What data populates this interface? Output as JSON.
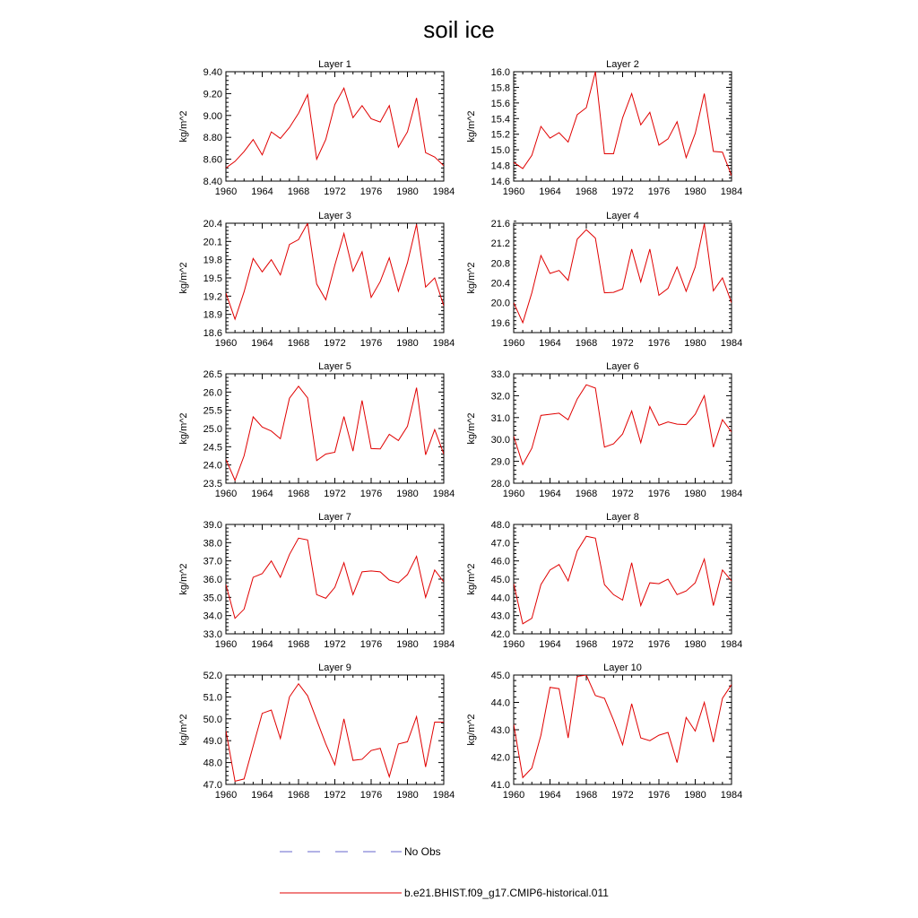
{
  "figure_title": "soil ice",
  "legend": {
    "entries": [
      {
        "label": "No Obs",
        "color": "#6666cc",
        "dash": "dashed"
      },
      {
        "label": "b.e21.BHIST.f09_g17.CMIP6-historical.011",
        "color": "#e00000",
        "dash": "solid"
      }
    ]
  },
  "chart_data": [
    {
      "type": "line",
      "title": "Layer 1",
      "ylabel": "kg/m^2",
      "xlim": [
        1960,
        1984
      ],
      "ylim": [
        8.4,
        9.4
      ],
      "xticks": [
        "1960",
        "1964",
        "1968",
        "1972",
        "1976",
        "1980",
        "1984"
      ],
      "yticks": [
        "8.40",
        "8.60",
        "8.80",
        "9.00",
        "9.20",
        "9.40"
      ],
      "x": [
        1960,
        1961,
        1962,
        1963,
        1964,
        1965,
        1966,
        1967,
        1968,
        1969,
        1970,
        1971,
        1972,
        1973,
        1974,
        1975,
        1976,
        1977,
        1978,
        1979,
        1980,
        1981,
        1982,
        1983,
        1984
      ],
      "series": [
        {
          "name": "b.e21.BHIST.f09_g17.CMIP6-historical.011",
          "color": "#e00000",
          "values": [
            8.52,
            8.58,
            8.67,
            8.78,
            8.64,
            8.85,
            8.79,
            8.89,
            9.02,
            9.19,
            8.6,
            8.78,
            9.1,
            9.25,
            8.98,
            9.09,
            8.97,
            8.94,
            9.09,
            8.71,
            8.85,
            9.16,
            8.66,
            8.62,
            8.54
          ]
        }
      ]
    },
    {
      "type": "line",
      "title": "Layer 2",
      "ylabel": "kg/m^2",
      "xlim": [
        1960,
        1984
      ],
      "ylim": [
        14.6,
        16.0
      ],
      "xticks": [
        "1960",
        "1964",
        "1968",
        "1972",
        "1976",
        "1980",
        "1984"
      ],
      "yticks": [
        "14.6",
        "14.8",
        "15.0",
        "15.2",
        "15.4",
        "15.6",
        "15.8",
        "16.0"
      ],
      "x": [
        1960,
        1961,
        1962,
        1963,
        1964,
        1965,
        1966,
        1967,
        1968,
        1969,
        1970,
        1971,
        1972,
        1973,
        1974,
        1975,
        1976,
        1977,
        1978,
        1979,
        1980,
        1981,
        1982,
        1983,
        1984
      ],
      "series": [
        {
          "name": "b.e21.BHIST.f09_g17.CMIP6-historical.011",
          "color": "#e00000",
          "values": [
            14.84,
            14.76,
            14.93,
            15.3,
            15.15,
            15.22,
            15.1,
            15.45,
            15.54,
            16.0,
            14.95,
            14.95,
            15.41,
            15.72,
            15.32,
            15.48,
            15.06,
            15.14,
            15.36,
            14.9,
            15.21,
            15.72,
            14.98,
            14.97,
            14.67
          ]
        }
      ]
    },
    {
      "type": "line",
      "title": "Layer 3",
      "ylabel": "kg/m^2",
      "xlim": [
        1960,
        1984
      ],
      "ylim": [
        18.6,
        20.4
      ],
      "xticks": [
        "1960",
        "1964",
        "1968",
        "1972",
        "1976",
        "1980",
        "1984"
      ],
      "yticks": [
        "18.6",
        "18.9",
        "19.2",
        "19.5",
        "19.8",
        "20.1",
        "20.4"
      ],
      "x": [
        1960,
        1961,
        1962,
        1963,
        1964,
        1965,
        1966,
        1967,
        1968,
        1969,
        1970,
        1971,
        1972,
        1973,
        1974,
        1975,
        1976,
        1977,
        1978,
        1979,
        1980,
        1981,
        1982,
        1983,
        1984
      ],
      "series": [
        {
          "name": "b.e21.BHIST.f09_g17.CMIP6-historical.011",
          "color": "#e00000",
          "values": [
            19.25,
            18.82,
            19.27,
            19.82,
            19.6,
            19.8,
            19.55,
            20.05,
            20.13,
            20.4,
            19.4,
            19.14,
            19.71,
            20.23,
            19.61,
            19.93,
            19.18,
            19.44,
            19.83,
            19.28,
            19.75,
            20.38,
            19.35,
            19.5,
            19.04
          ]
        }
      ]
    },
    {
      "type": "line",
      "title": "Layer 4",
      "ylabel": "kg/m^2",
      "xlim": [
        1960,
        1984
      ],
      "ylim": [
        19.4,
        21.6
      ],
      "xticks": [
        "1960",
        "1964",
        "1968",
        "1972",
        "1976",
        "1980",
        "1984"
      ],
      "yticks": [
        "19.6",
        "20.0",
        "20.4",
        "20.8",
        "21.2",
        "21.6"
      ],
      "x": [
        1960,
        1961,
        1962,
        1963,
        1964,
        1965,
        1966,
        1967,
        1968,
        1969,
        1970,
        1971,
        1972,
        1973,
        1974,
        1975,
        1976,
        1977,
        1978,
        1979,
        1980,
        1981,
        1982,
        1983,
        1984
      ],
      "series": [
        {
          "name": "b.e21.BHIST.f09_g17.CMIP6-historical.011",
          "color": "#e00000",
          "values": [
            20.0,
            19.6,
            20.2,
            20.95,
            20.59,
            20.65,
            20.45,
            21.28,
            21.47,
            21.3,
            20.2,
            20.21,
            20.28,
            21.08,
            20.42,
            21.08,
            20.15,
            20.29,
            20.72,
            20.23,
            20.72,
            21.59,
            20.24,
            20.5,
            20.0
          ]
        }
      ]
    },
    {
      "type": "line",
      "title": "Layer 5",
      "ylabel": "kg/m^2",
      "xlim": [
        1960,
        1984
      ],
      "ylim": [
        23.5,
        26.5
      ],
      "xticks": [
        "1960",
        "1964",
        "1968",
        "1972",
        "1976",
        "1980",
        "1984"
      ],
      "yticks": [
        "23.5",
        "24.0",
        "24.5",
        "25.0",
        "25.5",
        "26.0",
        "26.5"
      ],
      "x": [
        1960,
        1961,
        1962,
        1963,
        1964,
        1965,
        1966,
        1967,
        1968,
        1969,
        1970,
        1971,
        1972,
        1973,
        1974,
        1975,
        1976,
        1977,
        1978,
        1979,
        1980,
        1981,
        1982,
        1983,
        1984
      ],
      "series": [
        {
          "name": "b.e21.BHIST.f09_g17.CMIP6-historical.011",
          "color": "#e00000",
          "values": [
            24.15,
            23.58,
            24.25,
            25.32,
            25.04,
            24.93,
            24.72,
            25.83,
            26.16,
            25.84,
            24.12,
            24.3,
            24.35,
            25.33,
            24.38,
            25.77,
            24.45,
            24.44,
            24.84,
            24.67,
            25.06,
            26.12,
            24.28,
            24.97,
            24.3
          ]
        }
      ]
    },
    {
      "type": "line",
      "title": "Layer 6",
      "ylabel": "kg/m^2",
      "xlim": [
        1960,
        1984
      ],
      "ylim": [
        28.0,
        33.0
      ],
      "xticks": [
        "1960",
        "1964",
        "1968",
        "1972",
        "1976",
        "1980",
        "1984"
      ],
      "yticks": [
        "28.0",
        "29.0",
        "30.0",
        "31.0",
        "32.0",
        "33.0"
      ],
      "x": [
        1960,
        1961,
        1962,
        1963,
        1964,
        1965,
        1966,
        1967,
        1968,
        1969,
        1970,
        1971,
        1972,
        1973,
        1974,
        1975,
        1976,
        1977,
        1978,
        1979,
        1980,
        1981,
        1982,
        1983,
        1984
      ],
      "series": [
        {
          "name": "b.e21.BHIST.f09_g17.CMIP6-historical.011",
          "color": "#e00000",
          "values": [
            30.15,
            28.85,
            29.6,
            31.1,
            31.15,
            31.2,
            30.9,
            31.85,
            32.5,
            32.35,
            29.65,
            29.8,
            30.25,
            31.3,
            29.85,
            31.5,
            30.65,
            30.8,
            30.7,
            30.68,
            31.15,
            32.0,
            29.65,
            30.9,
            30.35
          ]
        }
      ]
    },
    {
      "type": "line",
      "title": "Layer 7",
      "ylabel": "kg/m^2",
      "xlim": [
        1960,
        1984
      ],
      "ylim": [
        33.0,
        39.0
      ],
      "xticks": [
        "1960",
        "1964",
        "1968",
        "1972",
        "1976",
        "1980",
        "1984"
      ],
      "yticks": [
        "33.0",
        "34.0",
        "35.0",
        "36.0",
        "37.0",
        "38.0",
        "39.0"
      ],
      "x": [
        1960,
        1961,
        1962,
        1963,
        1964,
        1965,
        1966,
        1967,
        1968,
        1969,
        1970,
        1971,
        1972,
        1973,
        1974,
        1975,
        1976,
        1977,
        1978,
        1979,
        1980,
        1981,
        1982,
        1983,
        1984
      ],
      "series": [
        {
          "name": "b.e21.BHIST.f09_g17.CMIP6-historical.011",
          "color": "#e00000",
          "values": [
            35.7,
            33.85,
            34.35,
            36.1,
            36.3,
            37.0,
            36.1,
            37.35,
            38.25,
            38.15,
            35.15,
            34.95,
            35.55,
            36.9,
            35.15,
            36.4,
            36.45,
            36.4,
            35.95,
            35.8,
            36.25,
            37.25,
            35.0,
            36.5,
            35.85
          ]
        }
      ]
    },
    {
      "type": "line",
      "title": "Layer 8",
      "ylabel": "kg/m^2",
      "xlim": [
        1960,
        1984
      ],
      "ylim": [
        42.0,
        48.0
      ],
      "xticks": [
        "1960",
        "1964",
        "1968",
        "1972",
        "1976",
        "1980",
        "1984"
      ],
      "yticks": [
        "42.0",
        "43.0",
        "44.0",
        "45.0",
        "46.0",
        "47.0",
        "48.0"
      ],
      "x": [
        1960,
        1961,
        1962,
        1963,
        1964,
        1965,
        1966,
        1967,
        1968,
        1969,
        1970,
        1971,
        1972,
        1973,
        1974,
        1975,
        1976,
        1977,
        1978,
        1979,
        1980,
        1981,
        1982,
        1983,
        1984
      ],
      "series": [
        {
          "name": "b.e21.BHIST.f09_g17.CMIP6-historical.011",
          "color": "#e00000",
          "values": [
            44.75,
            42.55,
            42.85,
            44.7,
            45.5,
            45.8,
            44.9,
            46.55,
            47.35,
            47.25,
            44.7,
            44.15,
            43.85,
            45.9,
            43.55,
            44.8,
            44.75,
            45.0,
            44.15,
            44.35,
            44.8,
            46.1,
            43.55,
            45.5,
            44.9
          ]
        }
      ]
    },
    {
      "type": "line",
      "title": "Layer 9",
      "ylabel": "kg/m^2",
      "xlim": [
        1960,
        1984
      ],
      "ylim": [
        47.0,
        52.0
      ],
      "xticks": [
        "1960",
        "1964",
        "1968",
        "1972",
        "1976",
        "1980",
        "1984"
      ],
      "yticks": [
        "47.0",
        "48.0",
        "49.0",
        "50.0",
        "51.0",
        "52.0"
      ],
      "x": [
        1960,
        1961,
        1962,
        1963,
        1964,
        1965,
        1966,
        1967,
        1968,
        1969,
        1970,
        1971,
        1972,
        1973,
        1974,
        1975,
        1976,
        1977,
        1978,
        1979,
        1980,
        1981,
        1982,
        1983,
        1984
      ],
      "series": [
        {
          "name": "b.e21.BHIST.f09_g17.CMIP6-historical.011",
          "color": "#e00000",
          "values": [
            49.45,
            47.15,
            47.25,
            48.75,
            50.25,
            50.4,
            49.1,
            51.0,
            51.6,
            51.05,
            49.95,
            48.85,
            47.9,
            50.0,
            48.1,
            48.15,
            48.55,
            48.65,
            47.35,
            48.85,
            48.95,
            50.1,
            47.8,
            49.85,
            49.85
          ]
        }
      ]
    },
    {
      "type": "line",
      "title": "Layer 10",
      "ylabel": "kg/m^2",
      "xlim": [
        1960,
        1984
      ],
      "ylim": [
        41.0,
        45.0
      ],
      "xticks": [
        "1960",
        "1964",
        "1968",
        "1972",
        "1976",
        "1980",
        "1984"
      ],
      "yticks": [
        "41.0",
        "42.0",
        "43.0",
        "44.0",
        "45.0"
      ],
      "x": [
        1960,
        1961,
        1962,
        1963,
        1964,
        1965,
        1966,
        1967,
        1968,
        1969,
        1970,
        1971,
        1972,
        1973,
        1974,
        1975,
        1976,
        1977,
        1978,
        1979,
        1980,
        1981,
        1982,
        1983,
        1984
      ],
      "series": [
        {
          "name": "b.e21.BHIST.f09_g17.CMIP6-historical.011",
          "color": "#e00000",
          "values": [
            43.2,
            41.25,
            41.6,
            42.8,
            44.55,
            44.5,
            42.7,
            44.95,
            45.0,
            44.25,
            44.15,
            43.35,
            42.45,
            43.95,
            42.7,
            42.6,
            42.8,
            42.9,
            41.8,
            43.45,
            42.95,
            44.0,
            42.55,
            44.15,
            44.65
          ]
        }
      ]
    }
  ]
}
